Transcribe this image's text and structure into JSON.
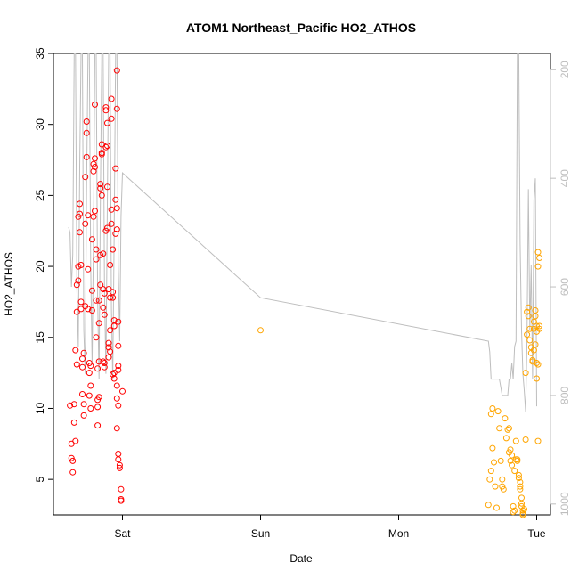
{
  "chart_data": {
    "type": "scatter",
    "title": "ATOM1 Northeast_Pacific HO2_ATHOS",
    "xlabel": "Date",
    "ylabel": "HO2_ATHOS",
    "x_ticks": [
      "Sat",
      "Sun",
      "Mon",
      "Tue"
    ],
    "xlim_days": [
      -0.5,
      3.1
    ],
    "ylim": [
      2.5,
      35.0
    ],
    "y_ticks": [
      5,
      10,
      15,
      20,
      25,
      30,
      35
    ],
    "y2_ticks": [
      200,
      400,
      600,
      800,
      1000
    ],
    "y2lim": [
      1020,
      170
    ],
    "grid": false,
    "colors": {
      "series1": "#ff0000",
      "series2": "#ffa500",
      "secondary_line": "#bebebe",
      "axis": "#000000",
      "y2_axis": "#bebebe"
    },
    "series": [
      {
        "values": [
          [
            -0.38,
            10.2
          ],
          [
            -0.37,
            7.5
          ],
          [
            -0.37,
            6.5
          ],
          [
            -0.36,
            5.5
          ],
          [
            -0.36,
            6.3
          ],
          [
            -0.35,
            9.0
          ],
          [
            -0.35,
            10.3
          ],
          [
            -0.34,
            7.7
          ],
          [
            -0.34,
            14.1
          ],
          [
            -0.33,
            13.1
          ],
          [
            -0.33,
            16.8
          ],
          [
            -0.33,
            18.7
          ],
          [
            -0.32,
            19.0
          ],
          [
            -0.32,
            20.0
          ],
          [
            -0.32,
            23.5
          ],
          [
            -0.31,
            22.4
          ],
          [
            -0.31,
            23.7
          ],
          [
            -0.31,
            24.4
          ],
          [
            -0.3,
            17.5
          ],
          [
            -0.3,
            20.1
          ],
          [
            -0.3,
            17.0
          ],
          [
            -0.29,
            13.5
          ],
          [
            -0.29,
            12.9
          ],
          [
            -0.29,
            11.0
          ],
          [
            -0.28,
            9.5
          ],
          [
            -0.28,
            10.3
          ],
          [
            -0.28,
            13.9
          ],
          [
            -0.27,
            17.2
          ],
          [
            -0.27,
            23.0
          ],
          [
            -0.27,
            26.3
          ],
          [
            -0.26,
            27.7
          ],
          [
            -0.26,
            30.2
          ],
          [
            -0.26,
            29.4
          ],
          [
            -0.25,
            23.6
          ],
          [
            -0.25,
            19.8
          ],
          [
            -0.25,
            17.0
          ],
          [
            -0.24,
            13.2
          ],
          [
            -0.24,
            12.5
          ],
          [
            -0.24,
            10.9
          ],
          [
            -0.23,
            10.0
          ],
          [
            -0.23,
            11.6
          ],
          [
            -0.23,
            13.0
          ],
          [
            -0.22,
            16.9
          ],
          [
            -0.22,
            18.3
          ],
          [
            -0.22,
            21.9
          ],
          [
            -0.21,
            23.5
          ],
          [
            -0.21,
            27.2
          ],
          [
            -0.21,
            26.7
          ],
          [
            -0.2,
            27.6
          ],
          [
            -0.2,
            31.4
          ],
          [
            -0.2,
            27.0
          ],
          [
            -0.2,
            23.9
          ],
          [
            -0.19,
            21.2
          ],
          [
            -0.19,
            20.5
          ],
          [
            -0.19,
            17.6
          ],
          [
            -0.19,
            15.0
          ],
          [
            -0.18,
            12.8
          ],
          [
            -0.18,
            10.6
          ],
          [
            -0.18,
            10.1
          ],
          [
            -0.18,
            8.8
          ],
          [
            -0.17,
            10.8
          ],
          [
            -0.17,
            13.3
          ],
          [
            -0.17,
            16.0
          ],
          [
            -0.17,
            17.6
          ],
          [
            -0.16,
            18.7
          ],
          [
            -0.16,
            20.8
          ],
          [
            -0.16,
            25.8
          ],
          [
            -0.16,
            25.5
          ],
          [
            -0.15,
            28.0
          ],
          [
            -0.15,
            27.9
          ],
          [
            -0.15,
            28.6
          ],
          [
            -0.15,
            25.0
          ],
          [
            -0.14,
            20.9
          ],
          [
            -0.14,
            18.4
          ],
          [
            -0.14,
            17.1
          ],
          [
            -0.14,
            13.3
          ],
          [
            -0.13,
            12.9
          ],
          [
            -0.13,
            13.2
          ],
          [
            -0.13,
            16.6
          ],
          [
            -0.13,
            18.1
          ],
          [
            -0.12,
            22.5
          ],
          [
            -0.12,
            28.4
          ],
          [
            -0.12,
            31.0
          ],
          [
            -0.12,
            31.2
          ],
          [
            -0.11,
            30.1
          ],
          [
            -0.11,
            28.5
          ],
          [
            -0.11,
            25.6
          ],
          [
            -0.11,
            22.7
          ],
          [
            -0.1,
            18.4
          ],
          [
            -0.1,
            14.6
          ],
          [
            -0.1,
            14.3
          ],
          [
            -0.1,
            13.6
          ],
          [
            -0.09,
            14.0
          ],
          [
            -0.09,
            15.5
          ],
          [
            -0.09,
            17.8
          ],
          [
            -0.09,
            20.1
          ],
          [
            -0.08,
            23.0
          ],
          [
            -0.08,
            24.0
          ],
          [
            -0.08,
            31.8
          ],
          [
            -0.08,
            30.4
          ],
          [
            -0.07,
            21.2
          ],
          [
            -0.07,
            18.2
          ],
          [
            -0.07,
            17.8
          ],
          [
            -0.07,
            12.4
          ],
          [
            -0.06,
            12.1
          ],
          [
            -0.06,
            12.5
          ],
          [
            -0.06,
            15.8
          ],
          [
            -0.06,
            16.2
          ],
          [
            -0.05,
            22.3
          ],
          [
            -0.05,
            24.7
          ],
          [
            -0.05,
            26.9
          ],
          [
            -0.04,
            22.6
          ],
          [
            -0.04,
            24.1
          ],
          [
            -0.04,
            33.8
          ],
          [
            -0.04,
            31.1
          ],
          [
            -0.03,
            16.1
          ],
          [
            -0.03,
            14.4
          ],
          [
            -0.03,
            13.0
          ],
          [
            -0.03,
            12.7
          ],
          [
            -0.04,
            11.6
          ],
          [
            -0.04,
            10.7
          ],
          [
            -0.04,
            8.6
          ],
          [
            -0.03,
            10.2
          ],
          [
            -0.03,
            6.8
          ],
          [
            -0.03,
            6.4
          ],
          [
            -0.02,
            6.0
          ],
          [
            -0.02,
            5.8
          ],
          [
            -0.01,
            4.3
          ],
          [
            -0.01,
            3.6
          ],
          [
            -0.01,
            3.5
          ],
          [
            0.0,
            11.2
          ]
        ]
      },
      {
        "values": [
          [
            1.0,
            15.5
          ],
          [
            2.65,
            3.2
          ],
          [
            2.66,
            5.0
          ],
          [
            2.67,
            5.6
          ],
          [
            2.67,
            9.6
          ],
          [
            2.68,
            10.0
          ],
          [
            2.68,
            7.2
          ],
          [
            2.69,
            6.2
          ],
          [
            2.7,
            4.5
          ],
          [
            2.71,
            3.0
          ],
          [
            2.72,
            9.8
          ],
          [
            2.73,
            8.6
          ],
          [
            2.74,
            6.3
          ],
          [
            2.75,
            5.0
          ],
          [
            2.75,
            4.5
          ],
          [
            2.76,
            4.3
          ],
          [
            2.77,
            9.3
          ],
          [
            2.78,
            7.9
          ],
          [
            2.79,
            8.5
          ],
          [
            2.8,
            6.9
          ],
          [
            2.8,
            8.6
          ],
          [
            2.81,
            7.1
          ],
          [
            2.81,
            6.3
          ],
          [
            2.82,
            6.0
          ],
          [
            2.82,
            6.7
          ],
          [
            2.83,
            3.1
          ],
          [
            2.83,
            2.7
          ],
          [
            2.84,
            2.8
          ],
          [
            2.84,
            5.6
          ],
          [
            2.85,
            6.4
          ],
          [
            2.85,
            7.7
          ],
          [
            2.86,
            6.3
          ],
          [
            2.86,
            6.4
          ],
          [
            2.87,
            5.3
          ],
          [
            2.87,
            5.1
          ],
          [
            2.88,
            4.5
          ],
          [
            2.88,
            4.3
          ],
          [
            2.88,
            4.8
          ],
          [
            2.89,
            3.7
          ],
          [
            2.89,
            3.3
          ],
          [
            2.89,
            3.1
          ],
          [
            2.9,
            2.8
          ],
          [
            2.9,
            2.6
          ],
          [
            2.9,
            2.5
          ],
          [
            2.91,
            2.9
          ],
          [
            2.92,
            7.8
          ],
          [
            2.92,
            12.5
          ],
          [
            2.93,
            15.2
          ],
          [
            2.93,
            16.8
          ],
          [
            2.94,
            17.1
          ],
          [
            2.94,
            16.5
          ],
          [
            2.95,
            15.6
          ],
          [
            2.95,
            14.8
          ],
          [
            2.96,
            14.3
          ],
          [
            2.96,
            13.9
          ],
          [
            2.97,
            13.4
          ],
          [
            2.97,
            13.3
          ],
          [
            2.98,
            15.6
          ],
          [
            2.98,
            16.1
          ],
          [
            2.99,
            16.5
          ],
          [
            2.99,
            16.9
          ],
          [
            3.0,
            15.4
          ],
          [
            3.0,
            15.8
          ],
          [
            3.0,
            12.1
          ],
          [
            3.01,
            13.1
          ],
          [
            3.01,
            20.0
          ],
          [
            3.01,
            21.0
          ],
          [
            3.02,
            20.6
          ],
          [
            3.02,
            15.6
          ],
          [
            3.02,
            15.8
          ],
          [
            3.01,
            7.7
          ],
          [
            3.0,
            13.2
          ],
          [
            2.99,
            14.5
          ],
          [
            2.98,
            14.1
          ]
        ]
      }
    ],
    "secondary_line": {
      "points": [
        [
          -0.39,
          490
        ],
        [
          -0.38,
          500
        ],
        [
          -0.37,
          600
        ],
        [
          -0.36,
          540
        ],
        [
          -0.35,
          170
        ],
        [
          -0.34,
          170
        ],
        [
          -0.33,
          600
        ],
        [
          -0.32,
          710
        ],
        [
          -0.31,
          380
        ],
        [
          -0.3,
          170
        ],
        [
          -0.29,
          170
        ],
        [
          -0.28,
          680
        ],
        [
          -0.27,
          760
        ],
        [
          -0.26,
          420
        ],
        [
          -0.25,
          170
        ],
        [
          -0.24,
          170
        ],
        [
          -0.23,
          560
        ],
        [
          -0.22,
          740
        ],
        [
          -0.21,
          500
        ],
        [
          -0.2,
          170
        ],
        [
          -0.19,
          170
        ],
        [
          -0.18,
          620
        ],
        [
          -0.17,
          770
        ],
        [
          -0.16,
          440
        ],
        [
          -0.15,
          170
        ],
        [
          -0.14,
          170
        ],
        [
          -0.13,
          600
        ],
        [
          -0.12,
          760
        ],
        [
          -0.11,
          450
        ],
        [
          -0.1,
          170
        ],
        [
          -0.09,
          170
        ],
        [
          -0.08,
          640
        ],
        [
          -0.07,
          770
        ],
        [
          -0.06,
          500
        ],
        [
          -0.05,
          170
        ],
        [
          -0.04,
          170
        ],
        [
          -0.03,
          560
        ],
        [
          -0.02,
          700
        ],
        [
          -0.01,
          470
        ],
        [
          0.0,
          390
        ],
        [
          1.0,
          620
        ],
        [
          2.65,
          700
        ],
        [
          2.66,
          720
        ],
        [
          2.67,
          770
        ],
        [
          2.68,
          770
        ],
        [
          2.7,
          770
        ],
        [
          2.72,
          770
        ],
        [
          2.73,
          770
        ],
        [
          2.75,
          800
        ],
        [
          2.76,
          800
        ],
        [
          2.77,
          800
        ],
        [
          2.78,
          800
        ],
        [
          2.79,
          800
        ],
        [
          2.8,
          770
        ],
        [
          2.81,
          770
        ],
        [
          2.82,
          740
        ],
        [
          2.83,
          770
        ],
        [
          2.84,
          710
        ],
        [
          2.85,
          700
        ],
        [
          2.86,
          170
        ],
        [
          2.87,
          170
        ],
        [
          2.88,
          520
        ],
        [
          2.89,
          680
        ],
        [
          2.9,
          760
        ],
        [
          2.91,
          790
        ],
        [
          2.92,
          830
        ],
        [
          2.93,
          700
        ],
        [
          2.94,
          420
        ],
        [
          2.95,
          680
        ],
        [
          2.96,
          560
        ],
        [
          2.97,
          770
        ],
        [
          2.98,
          440
        ],
        [
          2.99,
          400
        ],
        [
          3.0,
          820
        ]
      ]
    }
  }
}
